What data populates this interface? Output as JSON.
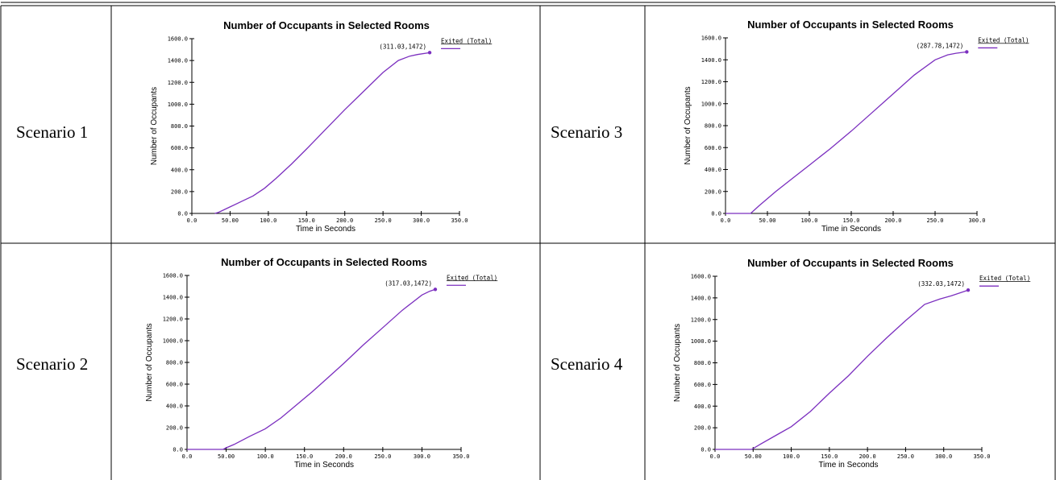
{
  "scenarios": [
    {
      "label": "Scenario 1"
    },
    {
      "label": "Scenario 2"
    },
    {
      "label": "Scenario 3"
    },
    {
      "label": "Scenario 4"
    }
  ],
  "colors": {
    "series": "#7b2fbf",
    "axis": "#000000",
    "grid_border": "#000000"
  },
  "chart_data": [
    {
      "panel": "Scenario 1",
      "type": "line",
      "title": "Number of Occupants in Selected Rooms",
      "xlabel": "Time in Seconds",
      "ylabel": "Number of Occupants",
      "xlim": [
        0,
        350
      ],
      "ylim": [
        0,
        1600
      ],
      "x_ticks": [
        "0.0",
        "50.00",
        "100.0",
        "150.0",
        "200.0",
        "250.0",
        "300.0",
        "350.0"
      ],
      "y_ticks": [
        "0.0",
        "200.0",
        "400.0",
        "600.0",
        "800.0",
        "1000.0",
        "1200.0",
        "1400.0",
        "1600.0"
      ],
      "grid": false,
      "legend_position": "top-right",
      "annotation": "(311.03,1472)",
      "series": [
        {
          "name": "Exited (Total)",
          "x": [
            30,
            35,
            50,
            65,
            80,
            95,
            110,
            130,
            150,
            175,
            200,
            225,
            250,
            270,
            285,
            295,
            311.03
          ],
          "y": [
            0,
            10,
            60,
            110,
            160,
            230,
            320,
            450,
            590,
            770,
            950,
            1120,
            1290,
            1400,
            1440,
            1455,
            1472
          ]
        }
      ]
    },
    {
      "panel": "Scenario 2",
      "type": "line",
      "title": "Number of Occupants in Selected Rooms",
      "xlabel": "Time in Seconds",
      "ylabel": "Number of Occupants",
      "xlim": [
        0,
        350
      ],
      "ylim": [
        0,
        1600
      ],
      "x_ticks": [
        "0.0",
        "50.00",
        "100.0",
        "150.0",
        "200.0",
        "250.0",
        "300.0",
        "350.0"
      ],
      "y_ticks": [
        "0.0",
        "200.0",
        "400.0",
        "600.0",
        "800.0",
        "1000.0",
        "1200.0",
        "1400.0",
        "1600.0"
      ],
      "grid": false,
      "legend_position": "top-right",
      "annotation": "(317.03,1472)",
      "series": [
        {
          "name": "Exited (Total)",
          "x": [
            0,
            46,
            50,
            60,
            80,
            100,
            120,
            140,
            160,
            180,
            200,
            225,
            250,
            275,
            300,
            310,
            317.03
          ],
          "y": [
            0,
            0,
            15,
            45,
            120,
            190,
            290,
            410,
            530,
            660,
            790,
            960,
            1120,
            1280,
            1420,
            1455,
            1472
          ]
        }
      ]
    },
    {
      "panel": "Scenario 3",
      "type": "line",
      "title": "Number of Occupants in Selected Rooms",
      "xlabel": "Time in Seconds",
      "ylabel": "Number of Occupants",
      "xlim": [
        0,
        300
      ],
      "ylim": [
        0,
        1600
      ],
      "x_ticks": [
        "0.0",
        "50.00",
        "100.0",
        "150.0",
        "200.0",
        "250.0",
        "300.0"
      ],
      "y_ticks": [
        "0.0",
        "200.0",
        "400.0",
        "600.0",
        "800.0",
        "1000.0",
        "1200.0",
        "1400.0",
        "1600.0"
      ],
      "grid": false,
      "legend_position": "top-right",
      "annotation": "(287.78,1472)",
      "series": [
        {
          "name": "Exited (Total)",
          "x": [
            0,
            30,
            40,
            60,
            80,
            100,
            125,
            150,
            175,
            200,
            225,
            250,
            265,
            275,
            287.78
          ],
          "y": [
            0,
            0,
            70,
            200,
            320,
            440,
            590,
            750,
            920,
            1090,
            1260,
            1400,
            1445,
            1460,
            1472
          ]
        }
      ]
    },
    {
      "panel": "Scenario 4",
      "type": "line",
      "title": "Number of Occupants in Selected Rooms",
      "xlabel": "Time in Seconds",
      "ylabel": "Number of Occupants",
      "xlim": [
        0,
        350
      ],
      "ylim": [
        0,
        1600
      ],
      "x_ticks": [
        "0.0",
        "50.00",
        "100.0",
        "150.0",
        "200.0",
        "250.0",
        "300.0",
        "350.0"
      ],
      "y_ticks": [
        "0.0",
        "200.0",
        "400.0",
        "600.0",
        "800.0",
        "1000.0",
        "1200.0",
        "1400.0",
        "1600.0"
      ],
      "grid": false,
      "legend_position": "top-right",
      "annotation": "(332.03,1472)",
      "series": [
        {
          "name": "Exited (Total)",
          "x": [
            0,
            48,
            60,
            80,
            100,
            125,
            150,
            175,
            200,
            225,
            250,
            275,
            295,
            310,
            332.03
          ],
          "y": [
            0,
            0,
            50,
            130,
            210,
            350,
            520,
            680,
            860,
            1030,
            1190,
            1340,
            1390,
            1420,
            1472
          ]
        }
      ]
    }
  ]
}
